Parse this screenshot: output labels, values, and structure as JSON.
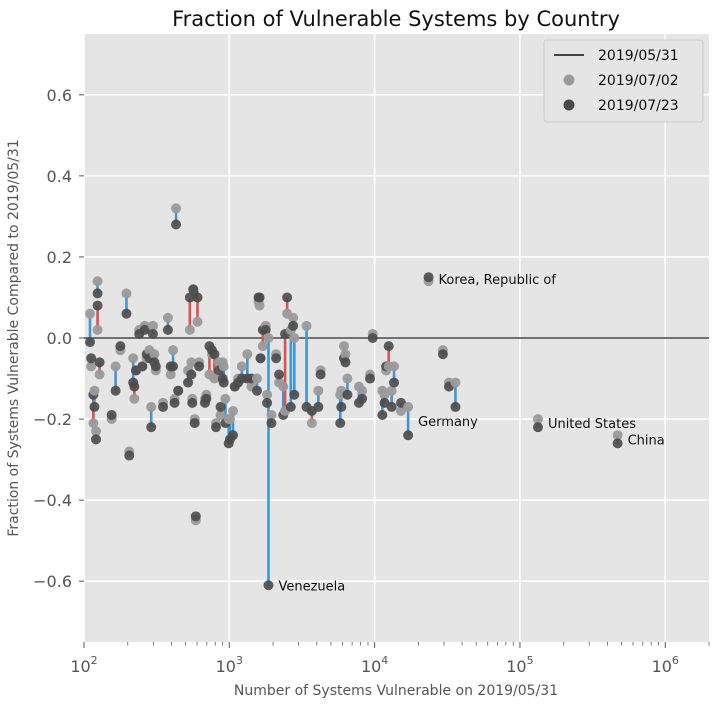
{
  "chart_data": {
    "type": "scatter",
    "title": "Fraction of Vulnerable Systems by Country",
    "xlabel": "Number of Systems Vulnerable on 2019/05/31",
    "ylabel": "Fraction of Systems Vulnerable Compared to 2019/05/31",
    "x_scale": "log",
    "xlim": [
      100,
      2000000
    ],
    "ylim": [
      -0.75,
      0.75
    ],
    "grid": true,
    "x_ticks": [
      {
        "base": "10",
        "exp": "2",
        "value": 100
      },
      {
        "base": "10",
        "exp": "3",
        "value": 1000
      },
      {
        "base": "10",
        "exp": "4",
        "value": 10000
      },
      {
        "base": "10",
        "exp": "5",
        "value": 100000
      },
      {
        "base": "10",
        "exp": "6",
        "value": 1000000
      }
    ],
    "y_ticks": [
      {
        "label": "0.6",
        "value": 0.6
      },
      {
        "label": "0.4",
        "value": 0.4
      },
      {
        "label": "0.2",
        "value": 0.2
      },
      {
        "label": "0.0",
        "value": 0.0
      },
      {
        "label": "−0.2",
        "value": -0.2
      },
      {
        "label": "−0.4",
        "value": -0.4
      },
      {
        "label": "−0.6",
        "value": -0.6
      }
    ],
    "legend_position": "top-right",
    "legend": [
      {
        "label": "2019/05/31",
        "kind": "line",
        "color": "#444444"
      },
      {
        "label": "2019/07/02",
        "kind": "marker",
        "color": "#9a9a9a"
      },
      {
        "label": "2019/07/23",
        "kind": "marker",
        "color": "#4a4a4a"
      }
    ],
    "baseline": {
      "name": "2019/05/31",
      "y": 0.0
    },
    "colors": {
      "decrease": "#3b97d9",
      "increase": "#d9534f"
    },
    "points": [
      {
        "x": 110,
        "y1": 0.06,
        "y2": -0.01
      },
      {
        "x": 112,
        "y1": -0.07,
        "y2": -0.05
      },
      {
        "x": 116,
        "y1": -0.21,
        "y2": -0.14
      },
      {
        "x": 118,
        "y1": -0.13,
        "y2": -0.17
      },
      {
        "x": 121,
        "y1": -0.23,
        "y2": -0.25
      },
      {
        "x": 124,
        "y1": 0.14,
        "y2": 0.11
      },
      {
        "x": 124,
        "y1": 0.02,
        "y2": 0.08
      },
      {
        "x": 128,
        "y1": -0.09,
        "y2": -0.06
      },
      {
        "x": 155,
        "y1": -0.2,
        "y2": -0.19
      },
      {
        "x": 165,
        "y1": -0.07,
        "y2": -0.13
      },
      {
        "x": 178,
        "y1": -0.03,
        "y2": -0.02
      },
      {
        "x": 196,
        "y1": 0.11,
        "y2": 0.06
      },
      {
        "x": 205,
        "y1": -0.28,
        "y2": -0.29
      },
      {
        "x": 218,
        "y1": -0.05,
        "y2": -0.11
      },
      {
        "x": 222,
        "y1": -0.15,
        "y2": -0.12
      },
      {
        "x": 228,
        "y1": -0.08,
        "y2": -0.08
      },
      {
        "x": 240,
        "y1": 0.02,
        "y2": 0.01
      },
      {
        "x": 252,
        "y1": -0.07,
        "y2": -0.07
      },
      {
        "x": 262,
        "y1": 0.03,
        "y2": 0.02
      },
      {
        "x": 270,
        "y1": -0.05,
        "y2": -0.04
      },
      {
        "x": 282,
        "y1": -0.03,
        "y2": -0.05
      },
      {
        "x": 290,
        "y1": -0.17,
        "y2": -0.22
      },
      {
        "x": 298,
        "y1": 0.03,
        "y2": 0.01
      },
      {
        "x": 305,
        "y1": -0.04,
        "y2": -0.06
      },
      {
        "x": 312,
        "y1": -0.08,
        "y2": -0.07
      },
      {
        "x": 350,
        "y1": -0.16,
        "y2": -0.17
      },
      {
        "x": 378,
        "y1": 0.05,
        "y2": 0.02
      },
      {
        "x": 395,
        "y1": -0.09,
        "y2": -0.07
      },
      {
        "x": 410,
        "y1": -0.03,
        "y2": -0.07
      },
      {
        "x": 420,
        "y1": -0.15,
        "y2": -0.16
      },
      {
        "x": 430,
        "y1": 0.32,
        "y2": 0.28
      },
      {
        "x": 445,
        "y1": -0.13,
        "y2": -0.13
      },
      {
        "x": 520,
        "y1": -0.08,
        "y2": -0.11
      },
      {
        "x": 535,
        "y1": 0.02,
        "y2": 0.1
      },
      {
        "x": 548,
        "y1": -0.06,
        "y2": -0.09
      },
      {
        "x": 556,
        "y1": -0.15,
        "y2": -0.16
      },
      {
        "x": 565,
        "y1": 0.12,
        "y2": 0.12
      },
      {
        "x": 570,
        "y1": 0.11,
        "y2": 0.11
      },
      {
        "x": 578,
        "y1": -0.2,
        "y2": -0.21
      },
      {
        "x": 588,
        "y1": -0.45,
        "y2": -0.44
      },
      {
        "x": 604,
        "y1": 0.04,
        "y2": 0.1
      },
      {
        "x": 620,
        "y1": -0.06,
        "y2": -0.07
      },
      {
        "x": 680,
        "y1": -0.15,
        "y2": -0.16
      },
      {
        "x": 695,
        "y1": -0.14,
        "y2": -0.15
      },
      {
        "x": 730,
        "y1": -0.09,
        "y2": -0.02
      },
      {
        "x": 760,
        "y1": -0.04,
        "y2": -0.03
      },
      {
        "x": 790,
        "y1": -0.1,
        "y2": -0.04
      },
      {
        "x": 810,
        "y1": -0.21,
        "y2": -0.22
      },
      {
        "x": 850,
        "y1": -0.06,
        "y2": -0.08
      },
      {
        "x": 870,
        "y1": -0.19,
        "y2": -0.17
      },
      {
        "x": 900,
        "y1": -0.06,
        "y2": -0.1
      },
      {
        "x": 915,
        "y1": -0.07,
        "y2": -0.11
      },
      {
        "x": 940,
        "y1": -0.15,
        "y2": -0.21
      },
      {
        "x": 990,
        "y1": -0.2,
        "y2": -0.26
      },
      {
        "x": 1010,
        "y1": -0.2,
        "y2": -0.25
      },
      {
        "x": 1060,
        "y1": -0.18,
        "y2": -0.24
      },
      {
        "x": 1090,
        "y1": -0.12,
        "y2": -0.12
      },
      {
        "x": 1150,
        "y1": -0.1,
        "y2": -0.11
      },
      {
        "x": 1220,
        "y1": -0.07,
        "y2": -0.1
      },
      {
        "x": 1330,
        "y1": -0.04,
        "y2": -0.1
      },
      {
        "x": 1420,
        "y1": -0.12,
        "y2": -0.1
      },
      {
        "x": 1550,
        "y1": -0.1,
        "y2": -0.13
      },
      {
        "x": 1590,
        "y1": 0.09,
        "y2": 0.1
      },
      {
        "x": 1615,
        "y1": 0.08,
        "y2": 0.1
      },
      {
        "x": 1640,
        "y1": -0.05,
        "y2": -0.05
      },
      {
        "x": 1700,
        "y1": -0.02,
        "y2": 0.02
      },
      {
        "x": 1780,
        "y1": 0.03,
        "y2": 0.02
      },
      {
        "x": 1820,
        "y1": -0.14,
        "y2": -0.16
      },
      {
        "x": 1860,
        "y1": 0.0,
        "y2": -0.61,
        "label": "Venezuela"
      },
      {
        "x": 1950,
        "y1": -0.19,
        "y2": -0.21
      },
      {
        "x": 2100,
        "y1": -0.04,
        "y2": -0.05
      },
      {
        "x": 2200,
        "y1": -0.11,
        "y2": -0.09
      },
      {
        "x": 2350,
        "y1": -0.12,
        "y2": -0.19
      },
      {
        "x": 2420,
        "y1": -0.18,
        "y2": 0.01
      },
      {
        "x": 2500,
        "y1": 0.06,
        "y2": 0.1
      },
      {
        "x": 2650,
        "y1": 0.02,
        "y2": -0.17
      },
      {
        "x": 2750,
        "y1": 0.05,
        "y2": 0.03
      },
      {
        "x": 2800,
        "y1": 0.0,
        "y2": -0.14
      },
      {
        "x": 3400,
        "y1": 0.03,
        "y2": -0.17
      },
      {
        "x": 3700,
        "y1": -0.21,
        "y2": -0.18
      },
      {
        "x": 4100,
        "y1": -0.13,
        "y2": -0.17
      },
      {
        "x": 4250,
        "y1": -0.08,
        "y2": -0.09
      },
      {
        "x": 5800,
        "y1": -0.14,
        "y2": -0.21
      },
      {
        "x": 5900,
        "y1": -0.13,
        "y2": -0.17
      },
      {
        "x": 6150,
        "y1": -0.02,
        "y2": -0.05
      },
      {
        "x": 6300,
        "y1": -0.04,
        "y2": -0.06
      },
      {
        "x": 6500,
        "y1": -0.1,
        "y2": -0.14
      },
      {
        "x": 7800,
        "y1": -0.12,
        "y2": -0.16
      },
      {
        "x": 8200,
        "y1": -0.13,
        "y2": -0.15
      },
      {
        "x": 9300,
        "y1": -0.09,
        "y2": -0.1
      },
      {
        "x": 9700,
        "y1": 0.01,
        "y2": 0.0
      },
      {
        "x": 11300,
        "y1": -0.13,
        "y2": -0.19
      },
      {
        "x": 11700,
        "y1": -0.14,
        "y2": -0.16
      },
      {
        "x": 12000,
        "y1": -0.08,
        "y2": -0.07
      },
      {
        "x": 12500,
        "y1": -0.07,
        "y2": -0.02
      },
      {
        "x": 13100,
        "y1": -0.13,
        "y2": -0.17
      },
      {
        "x": 13600,
        "y1": -0.07,
        "y2": -0.11
      },
      {
        "x": 15200,
        "y1": -0.18,
        "y2": -0.16
      },
      {
        "x": 17000,
        "y1": -0.17,
        "y2": -0.24,
        "label": "Germany"
      },
      {
        "x": 23500,
        "y1": 0.14,
        "y2": 0.15,
        "label": "Korea, Republic of"
      },
      {
        "x": 29500,
        "y1": -0.03,
        "y2": -0.04
      },
      {
        "x": 32500,
        "y1": -0.11,
        "y2": -0.12
      },
      {
        "x": 36000,
        "y1": -0.11,
        "y2": -0.17
      },
      {
        "x": 133000,
        "y1": -0.2,
        "y2": -0.22,
        "label": "United States"
      },
      {
        "x": 470000,
        "y1": -0.24,
        "y2": -0.26,
        "label": "China"
      }
    ]
  }
}
